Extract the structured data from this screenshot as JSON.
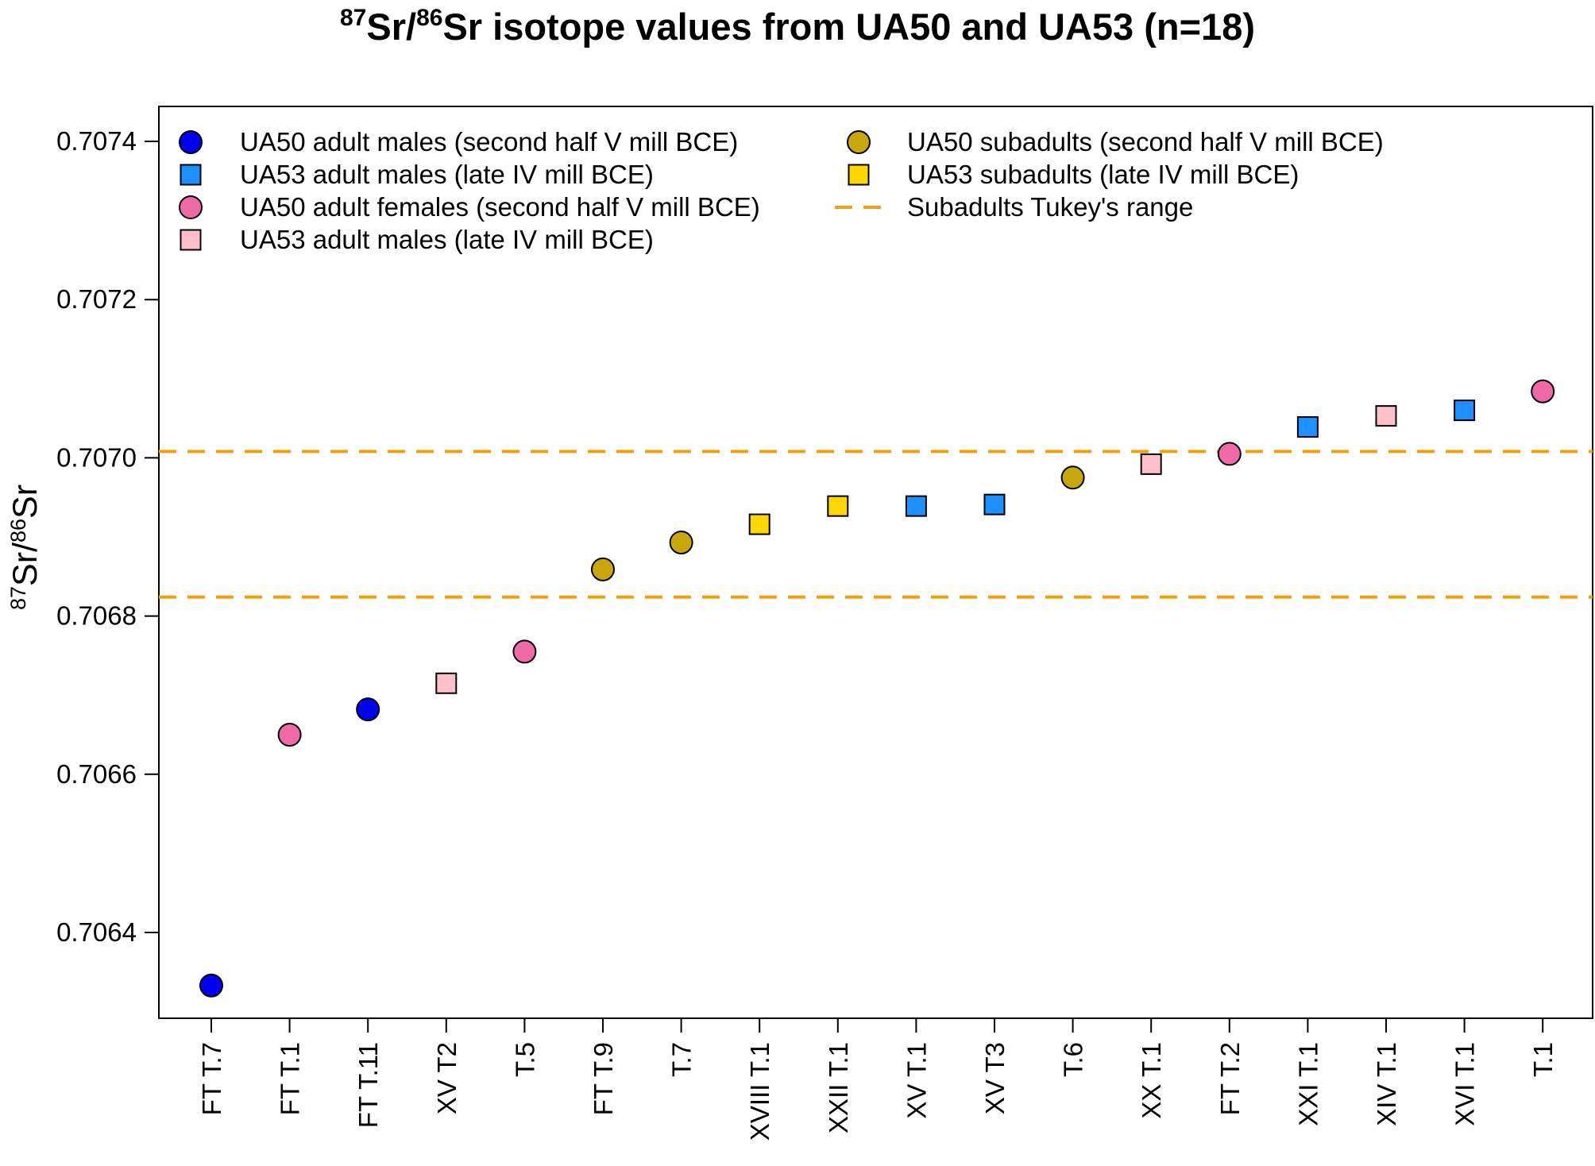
{
  "chart_data": {
    "type": "scatter",
    "title": {
      "sup1": "87",
      "part1": "Sr",
      "slash": "/",
      "sup2": "86",
      "part2": "Sr isotope values from UA50 and UA53 (n=18)"
    },
    "ylabel": {
      "sup1": "87",
      "part1": "Sr",
      "slash": "/",
      "sup2": "86",
      "part2": "Sr"
    },
    "xlabel": "",
    "ylim": [
      0.70629,
      0.70745
    ],
    "yticks": [
      "0.7064",
      "0.7066",
      "0.7068",
      "0.7070",
      "0.7072",
      "0.7074"
    ],
    "categories": [
      "FT T.7",
      "FT  T.1",
      "FT T.11",
      "XV T2",
      "T.5",
      "FT T.9",
      "T.7",
      "XVIII T.1",
      "XXII T.1",
      "XV T.1",
      "XV T3",
      "T.6",
      "XX T.1",
      "FT  T.2",
      "XXI T.1",
      "XIV T.1",
      "XVI T.1",
      "T.1"
    ],
    "points": [
      {
        "label": "FT T.7",
        "value": 0.706333,
        "group": 0
      },
      {
        "label": "FT  T.1",
        "value": 0.70665,
        "group": 2
      },
      {
        "label": "FT T.11",
        "value": 0.706682,
        "group": 0
      },
      {
        "label": "XV T2",
        "value": 0.706715,
        "group": 3
      },
      {
        "label": "T.5",
        "value": 0.706755,
        "group": 2
      },
      {
        "label": "FT T.9",
        "value": 0.706859,
        "group": 4
      },
      {
        "label": "T.7",
        "value": 0.706893,
        "group": 4
      },
      {
        "label": "XVIII T.1",
        "value": 0.706916,
        "group": 5
      },
      {
        "label": "XXII T.1",
        "value": 0.706939,
        "group": 5
      },
      {
        "label": "XV T.1",
        "value": 0.706939,
        "group": 1
      },
      {
        "label": "XV T3",
        "value": 0.706941,
        "group": 1
      },
      {
        "label": "T.6",
        "value": 0.706975,
        "group": 4
      },
      {
        "label": "XX T.1",
        "value": 0.706992,
        "group": 3
      },
      {
        "label": "FT  T.2",
        "value": 0.707005,
        "group": 2
      },
      {
        "label": "XXI T.1",
        "value": 0.707039,
        "group": 1
      },
      {
        "label": "XIV T.1",
        "value": 0.707053,
        "group": 3
      },
      {
        "label": "XVI T.1",
        "value": 0.70706,
        "group": 1
      },
      {
        "label": "T.1",
        "value": 0.707084,
        "group": 2
      }
    ],
    "groups": [
      {
        "name": "UA50 adult males (second half V mill BCE)",
        "shape": "circle",
        "color": "#0000ee"
      },
      {
        "name": "UA53 adult males (late IV mill BCE)",
        "shape": "square",
        "color": "#1e90ff"
      },
      {
        "name": "UA50 adult females (second half V mill BCE)",
        "shape": "circle",
        "color": "#ee6aa7"
      },
      {
        "name": "UA53 adult males (late IV mill BCE)",
        "shape": "square",
        "color": "#ffc0cb"
      },
      {
        "name": "UA50 subadults (second half V mill BCE)",
        "shape": "circle",
        "color": "#c8a70e"
      },
      {
        "name": "UA53 subadults (late IV mill BCE)",
        "shape": "square",
        "color": "#ffd700"
      }
    ],
    "reference_lines": {
      "name": "Subadults Tukey's range",
      "values": [
        0.707008,
        0.706824
      ],
      "color": "#f0a010",
      "style": "dashed"
    },
    "legend_position": "top"
  }
}
